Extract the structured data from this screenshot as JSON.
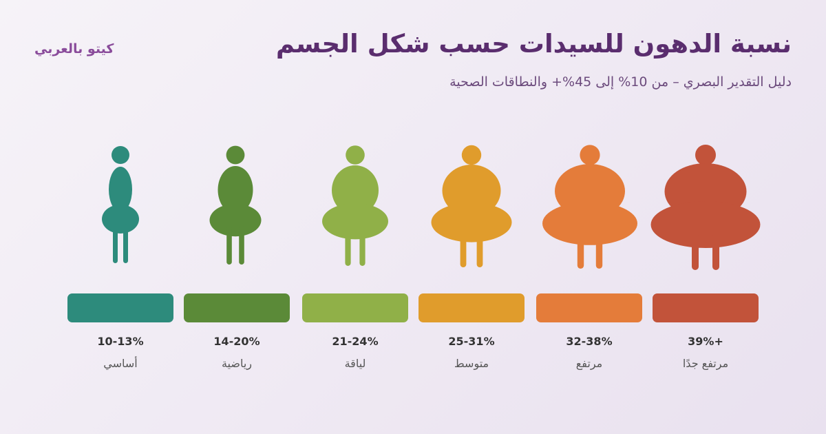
{
  "header": {
    "title": "نسبة الدهون للسيدات حسب شكل الجسم",
    "subtitle": "دليل التقدير البصري – من 10% إلى 45%+ والنطاقات الصحية",
    "brand": "كيتو بالعربي"
  },
  "categories": [
    {
      "range": "10-13%",
      "label": "أساسي",
      "color": "#2d8b7c",
      "fat_level": 1
    },
    {
      "range": "14-20%",
      "label": "رياضية",
      "color": "#5b8a38",
      "fat_level": 2
    },
    {
      "range": "21-24%",
      "label": "لياقة",
      "color": "#90b048",
      "fat_level": 3
    },
    {
      "range": "25-31%",
      "label": "متوسط",
      "color": "#e09c2c",
      "fat_level": 4
    },
    {
      "range": "32-38%",
      "label": "مرتفع",
      "color": "#e47c3a",
      "fat_level": 5
    },
    {
      "range": "39%+",
      "label": "مرتفع جدًا",
      "color": "#c2533a",
      "fat_level": 6
    }
  ]
}
